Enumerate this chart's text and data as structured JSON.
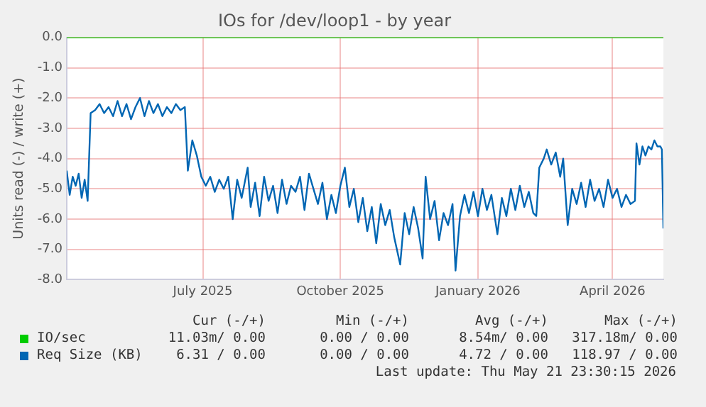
{
  "chart_data": {
    "type": "line",
    "title": "IOs for /dev/loop1 - by year",
    "ylabel": "Units read (-) / write (+)",
    "xlim": [
      "2025-04-16",
      "2026-05-20"
    ],
    "xticks": [
      {
        "value": "2025-07-16",
        "label": "July 2025"
      },
      {
        "value": "2025-10-16",
        "label": "October 2025"
      },
      {
        "value": "2026-01-16",
        "label": "January 2026"
      },
      {
        "value": "2026-04-16",
        "label": "April 2026"
      }
    ],
    "ylim": [
      -8,
      0
    ],
    "yticks": [
      {
        "value": -8,
        "label": "-8.0"
      },
      {
        "value": -7,
        "label": "-7.0"
      },
      {
        "value": -6,
        "label": "-6.0"
      },
      {
        "value": -5,
        "label": "-5.0"
      },
      {
        "value": -4,
        "label": "-4.0"
      },
      {
        "value": -3,
        "label": "-3.0"
      },
      {
        "value": -2,
        "label": "-2.0"
      },
      {
        "value": -1,
        "label": "-1.0"
      },
      {
        "value": 0,
        "label": "0.0"
      }
    ],
    "grid": true,
    "legend": "bottom",
    "marker": "none",
    "line_style": "solid",
    "series": [
      {
        "name": "IO/sec",
        "color": "#00cc00",
        "x": [
          "2025-04-16",
          "2026-05-20"
        ],
        "values": [
          0,
          0
        ]
      },
      {
        "name": "Req Size (KB)",
        "color": "#0066b3",
        "x": [
          "2025-04-16",
          "2025-04-18",
          "2025-04-20",
          "2025-04-22",
          "2025-04-24",
          "2025-04-26",
          "2025-04-28",
          "2025-04-30",
          "2025-05-02",
          "2025-05-05",
          "2025-05-08",
          "2025-05-11",
          "2025-05-14",
          "2025-05-17",
          "2025-05-20",
          "2025-05-23",
          "2025-05-26",
          "2025-05-29",
          "2025-06-01",
          "2025-06-04",
          "2025-06-07",
          "2025-06-10",
          "2025-06-13",
          "2025-06-16",
          "2025-06-19",
          "2025-06-22",
          "2025-06-25",
          "2025-06-28",
          "2025-07-01",
          "2025-07-04",
          "2025-07-06",
          "2025-07-09",
          "2025-07-12",
          "2025-07-15",
          "2025-07-18",
          "2025-07-21",
          "2025-07-24",
          "2025-07-27",
          "2025-07-30",
          "2025-08-02",
          "2025-08-05",
          "2025-08-08",
          "2025-08-11",
          "2025-08-15",
          "2025-08-17",
          "2025-08-20",
          "2025-08-23",
          "2025-08-26",
          "2025-08-29",
          "2025-09-01",
          "2025-09-04",
          "2025-09-07",
          "2025-09-10",
          "2025-09-13",
          "2025-09-16",
          "2025-09-19",
          "2025-09-22",
          "2025-09-25",
          "2025-09-28",
          "2025-10-01",
          "2025-10-04",
          "2025-10-07",
          "2025-10-10",
          "2025-10-13",
          "2025-10-16",
          "2025-10-19",
          "2025-10-22",
          "2025-10-25",
          "2025-10-28",
          "2025-10-31",
          "2025-11-03",
          "2025-11-06",
          "2025-11-09",
          "2025-11-12",
          "2025-11-15",
          "2025-11-18",
          "2025-11-21",
          "2025-11-25",
          "2025-11-28",
          "2025-12-01",
          "2025-12-04",
          "2025-12-07",
          "2025-12-10",
          "2025-12-12",
          "2025-12-15",
          "2025-12-18",
          "2025-12-21",
          "2025-12-24",
          "2025-12-27",
          "2025-12-30",
          "2026-01-01",
          "2026-01-04",
          "2026-01-07",
          "2026-01-10",
          "2026-01-13",
          "2026-01-16",
          "2026-01-19",
          "2026-01-22",
          "2026-01-25",
          "2026-01-29",
          "2026-02-01",
          "2026-02-04",
          "2026-02-07",
          "2026-02-10",
          "2026-02-13",
          "2026-02-16",
          "2026-02-19",
          "2026-02-22",
          "2026-02-24",
          "2026-02-26",
          "2026-03-01",
          "2026-03-03",
          "2026-03-06",
          "2026-03-09",
          "2026-03-12",
          "2026-03-14",
          "2026-03-17",
          "2026-03-20",
          "2026-03-23",
          "2026-03-26",
          "2026-03-29",
          "2026-04-01",
          "2026-04-04",
          "2026-04-07",
          "2026-04-10",
          "2026-04-13",
          "2026-04-16",
          "2026-04-19",
          "2026-04-22",
          "2026-04-25",
          "2026-04-28",
          "2026-05-01",
          "2026-05-02",
          "2026-05-04",
          "2026-05-06",
          "2026-05-08",
          "2026-05-10",
          "2026-05-12",
          "2026-05-14",
          "2026-05-16",
          "2026-05-18",
          "2026-05-19",
          "2026-05-20"
        ],
        "values": [
          -4.4,
          -5.2,
          -4.6,
          -4.9,
          -4.5,
          -5.3,
          -4.7,
          -5.4,
          -2.5,
          -2.4,
          -2.2,
          -2.5,
          -2.3,
          -2.6,
          -2.1,
          -2.6,
          -2.2,
          -2.7,
          -2.3,
          -2.0,
          -2.6,
          -2.1,
          -2.5,
          -2.2,
          -2.6,
          -2.3,
          -2.5,
          -2.2,
          -2.4,
          -2.3,
          -4.4,
          -3.4,
          -3.9,
          -4.6,
          -4.9,
          -4.6,
          -5.1,
          -4.7,
          -5.0,
          -4.6,
          -6.0,
          -4.7,
          -5.3,
          -4.3,
          -5.6,
          -4.8,
          -5.9,
          -4.6,
          -5.4,
          -4.9,
          -5.8,
          -4.7,
          -5.5,
          -4.9,
          -5.1,
          -4.6,
          -5.7,
          -4.5,
          -5.0,
          -5.5,
          -4.8,
          -6.0,
          -5.2,
          -5.8,
          -4.9,
          -4.3,
          -5.6,
          -5.0,
          -6.1,
          -5.3,
          -6.4,
          -5.6,
          -6.8,
          -5.5,
          -6.2,
          -5.7,
          -6.6,
          -7.5,
          -5.8,
          -6.5,
          -5.6,
          -6.3,
          -7.3,
          -4.6,
          -6.0,
          -5.4,
          -6.7,
          -5.8,
          -6.2,
          -5.5,
          -7.7,
          -5.9,
          -5.2,
          -5.8,
          -5.1,
          -5.9,
          -5.0,
          -5.7,
          -5.2,
          -6.5,
          -5.3,
          -5.9,
          -5.0,
          -5.7,
          -4.9,
          -5.6,
          -5.1,
          -5.8,
          -5.9,
          -4.3,
          -4.0,
          -3.7,
          -4.2,
          -3.8,
          -4.6,
          -4.0,
          -6.2,
          -5.0,
          -5.5,
          -4.8,
          -5.6,
          -4.7,
          -5.4,
          -5.0,
          -5.6,
          -4.7,
          -5.3,
          -5.0,
          -5.6,
          -5.2,
          -5.5,
          -5.4,
          -3.5,
          -4.2,
          -3.6,
          -3.9,
          -3.6,
          -3.7,
          -3.4,
          -3.6,
          -3.6,
          -3.7,
          -6.31
        ]
      }
    ],
    "annotations": [
      "Cur (-/+)",
      "Min (-/+)",
      "Avg (-/+)",
      "Max (-/+)",
      "11.03m/ 0.00",
      "0.00 / 0.00",
      "8.54m/ 0.00",
      "317.18m/ 0.00",
      "6.31 / 0.00",
      "0.00 / 0.00",
      "4.72 / 0.00",
      "118.97 / 0.00",
      "Last update: Thu May 21 23:30:15 2026"
    ]
  }
}
